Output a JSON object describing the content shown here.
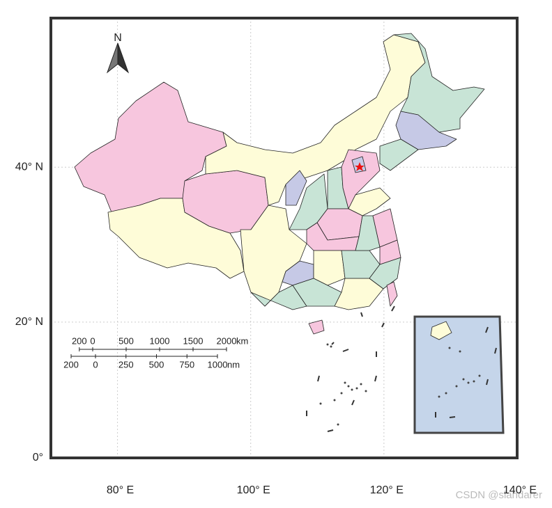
{
  "map": {
    "projection": "mercator",
    "xlim": [
      70,
      140
    ],
    "ylim": [
      0,
      55
    ],
    "grid": true,
    "xticks": [
      {
        "value": 80,
        "label": "80° E"
      },
      {
        "value": 100,
        "label": "100° E"
      },
      {
        "value": 120,
        "label": "120° E"
      },
      {
        "value": 140,
        "label": "140° E"
      }
    ],
    "yticks": [
      {
        "value": 0,
        "label": "0°"
      },
      {
        "value": 20,
        "label": "20° N"
      },
      {
        "value": 40,
        "label": "40° N"
      }
    ]
  },
  "north_arrow": "N",
  "scale_bar": {
    "km": {
      "unit": "km",
      "ticks": [
        {
          "value": -200,
          "label": "200"
        },
        0,
        500,
        1000,
        1500,
        2000
      ]
    },
    "nm": {
      "unit": "nm",
      "ticks": [
        {
          "value": -200,
          "label": "200"
        },
        0,
        250,
        500,
        750,
        1000
      ]
    }
  },
  "watermark": "CSDN @slandarer"
}
